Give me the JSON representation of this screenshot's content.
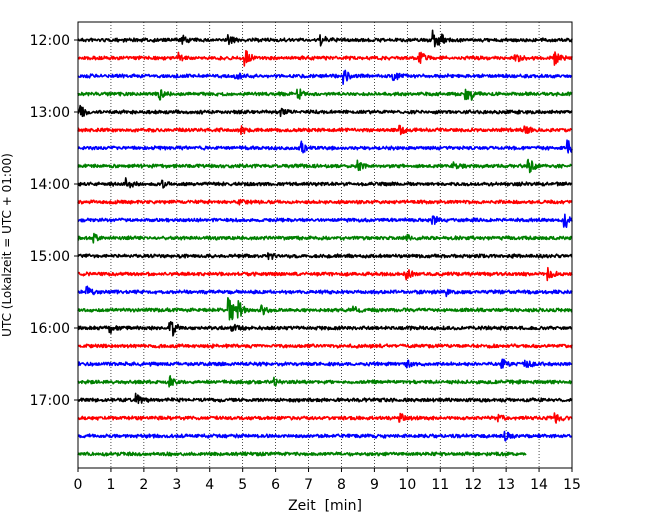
{
  "chart_data": {
    "type": "line",
    "title": "",
    "xlabel": "Zeit  [min]",
    "ylabel": "UTC (Lokalzeit = UTC + 01:00)",
    "xlim": [
      0,
      15
    ],
    "x_ticks": [
      0,
      1,
      2,
      3,
      4,
      5,
      6,
      7,
      8,
      9,
      10,
      11,
      12,
      13,
      14,
      15
    ],
    "y_tick_labels": [
      "12:00",
      "13:00",
      "14:00",
      "15:00",
      "16:00",
      "17:00"
    ],
    "grid": "vertical dotted",
    "colors": [
      "#000000",
      "#ff0000",
      "#0000ff",
      "#008000"
    ],
    "series": [
      {
        "label": "12:00",
        "color": "#000000",
        "x_end": 15,
        "events": [
          [
            3.2,
            0.4
          ],
          [
            4.6,
            0.4
          ],
          [
            7.4,
            0.5
          ],
          [
            10.8,
            0.9
          ],
          [
            11.0,
            0.6
          ]
        ]
      },
      {
        "label": "12:15",
        "color": "#ff0000",
        "x_end": 15,
        "events": [
          [
            3.1,
            0.5
          ],
          [
            5.1,
            0.8
          ],
          [
            10.4,
            0.6
          ],
          [
            13.3,
            0.4
          ],
          [
            14.5,
            0.6
          ]
        ]
      },
      {
        "label": "12:30",
        "color": "#0000ff",
        "x_end": 15,
        "events": [
          [
            4.8,
            0.5
          ],
          [
            8.1,
            0.8
          ],
          [
            9.6,
            0.6
          ]
        ]
      },
      {
        "label": "12:45",
        "color": "#008000",
        "x_end": 15,
        "events": [
          [
            2.5,
            0.5
          ],
          [
            6.7,
            0.6
          ],
          [
            11.8,
            0.6
          ],
          [
            12.0,
            0.4
          ]
        ]
      },
      {
        "label": "13:00",
        "color": "#000000",
        "x_end": 15,
        "events": [
          [
            0.1,
            0.6
          ],
          [
            6.2,
            0.3
          ]
        ]
      },
      {
        "label": "13:15",
        "color": "#ff0000",
        "x_end": 15,
        "events": [
          [
            5.0,
            0.4
          ],
          [
            9.8,
            0.4
          ],
          [
            13.6,
            0.4
          ]
        ]
      },
      {
        "label": "13:30",
        "color": "#0000ff",
        "x_end": 15,
        "events": [
          [
            6.8,
            0.7
          ],
          [
            14.9,
            0.7
          ]
        ]
      },
      {
        "label": "13:45",
        "color": "#008000",
        "x_end": 15,
        "events": [
          [
            8.5,
            0.5
          ],
          [
            11.4,
            0.4
          ],
          [
            13.7,
            0.9
          ]
        ]
      },
      {
        "label": "14:00",
        "color": "#000000",
        "x_end": 15,
        "events": [
          [
            1.5,
            0.6
          ],
          [
            2.6,
            0.3
          ]
        ]
      },
      {
        "label": "14:15",
        "color": "#ff0000",
        "x_end": 15,
        "events": [
          [
            4.9,
            0.4
          ]
        ]
      },
      {
        "label": "14:30",
        "color": "#0000ff",
        "x_end": 15,
        "events": [
          [
            10.8,
            0.4
          ],
          [
            14.8,
            0.9
          ]
        ]
      },
      {
        "label": "14:45",
        "color": "#008000",
        "x_end": 15,
        "events": [
          [
            0.5,
            0.4
          ],
          [
            10.0,
            0.4
          ]
        ]
      },
      {
        "label": "15:00",
        "color": "#000000",
        "x_end": 15,
        "events": [
          [
            5.8,
            0.5
          ]
        ]
      },
      {
        "label": "15:15",
        "color": "#ff0000",
        "x_end": 15,
        "events": [
          [
            10.0,
            0.5
          ],
          [
            14.3,
            0.6
          ]
        ]
      },
      {
        "label": "15:30",
        "color": "#0000ff",
        "x_end": 15,
        "events": [
          [
            0.3,
            0.5
          ],
          [
            11.2,
            0.3
          ]
        ]
      },
      {
        "label": "15:45",
        "color": "#008000",
        "x_end": 15,
        "events": [
          [
            4.6,
            2.0
          ],
          [
            4.9,
            0.8
          ],
          [
            5.6,
            0.5
          ],
          [
            8.4,
            0.3
          ]
        ]
      },
      {
        "label": "16:00",
        "color": "#000000",
        "x_end": 15,
        "events": [
          [
            1.0,
            0.5
          ],
          [
            2.8,
            0.6
          ],
          [
            2.9,
            0.5
          ],
          [
            4.7,
            0.4
          ]
        ]
      },
      {
        "label": "16:15",
        "color": "#ff0000",
        "x_end": 15,
        "events": []
      },
      {
        "label": "16:30",
        "color": "#0000ff",
        "x_end": 15,
        "events": [
          [
            10.0,
            0.4
          ],
          [
            12.9,
            0.5
          ],
          [
            13.6,
            0.5
          ]
        ]
      },
      {
        "label": "16:45",
        "color": "#008000",
        "x_end": 15,
        "events": [
          [
            2.8,
            0.5
          ],
          [
            6.0,
            0.4
          ]
        ]
      },
      {
        "label": "17:00",
        "color": "#000000",
        "x_end": 15,
        "events": [
          [
            1.8,
            0.7
          ]
        ]
      },
      {
        "label": "17:15",
        "color": "#ff0000",
        "x_end": 15,
        "events": [
          [
            9.8,
            0.4
          ],
          [
            12.8,
            0.3
          ],
          [
            14.5,
            0.6
          ]
        ]
      },
      {
        "label": "17:30",
        "color": "#0000ff",
        "x_end": 15,
        "events": [
          [
            13.0,
            0.4
          ]
        ]
      },
      {
        "label": "17:45",
        "color": "#008000",
        "x_end": 13.6,
        "events": []
      }
    ]
  }
}
